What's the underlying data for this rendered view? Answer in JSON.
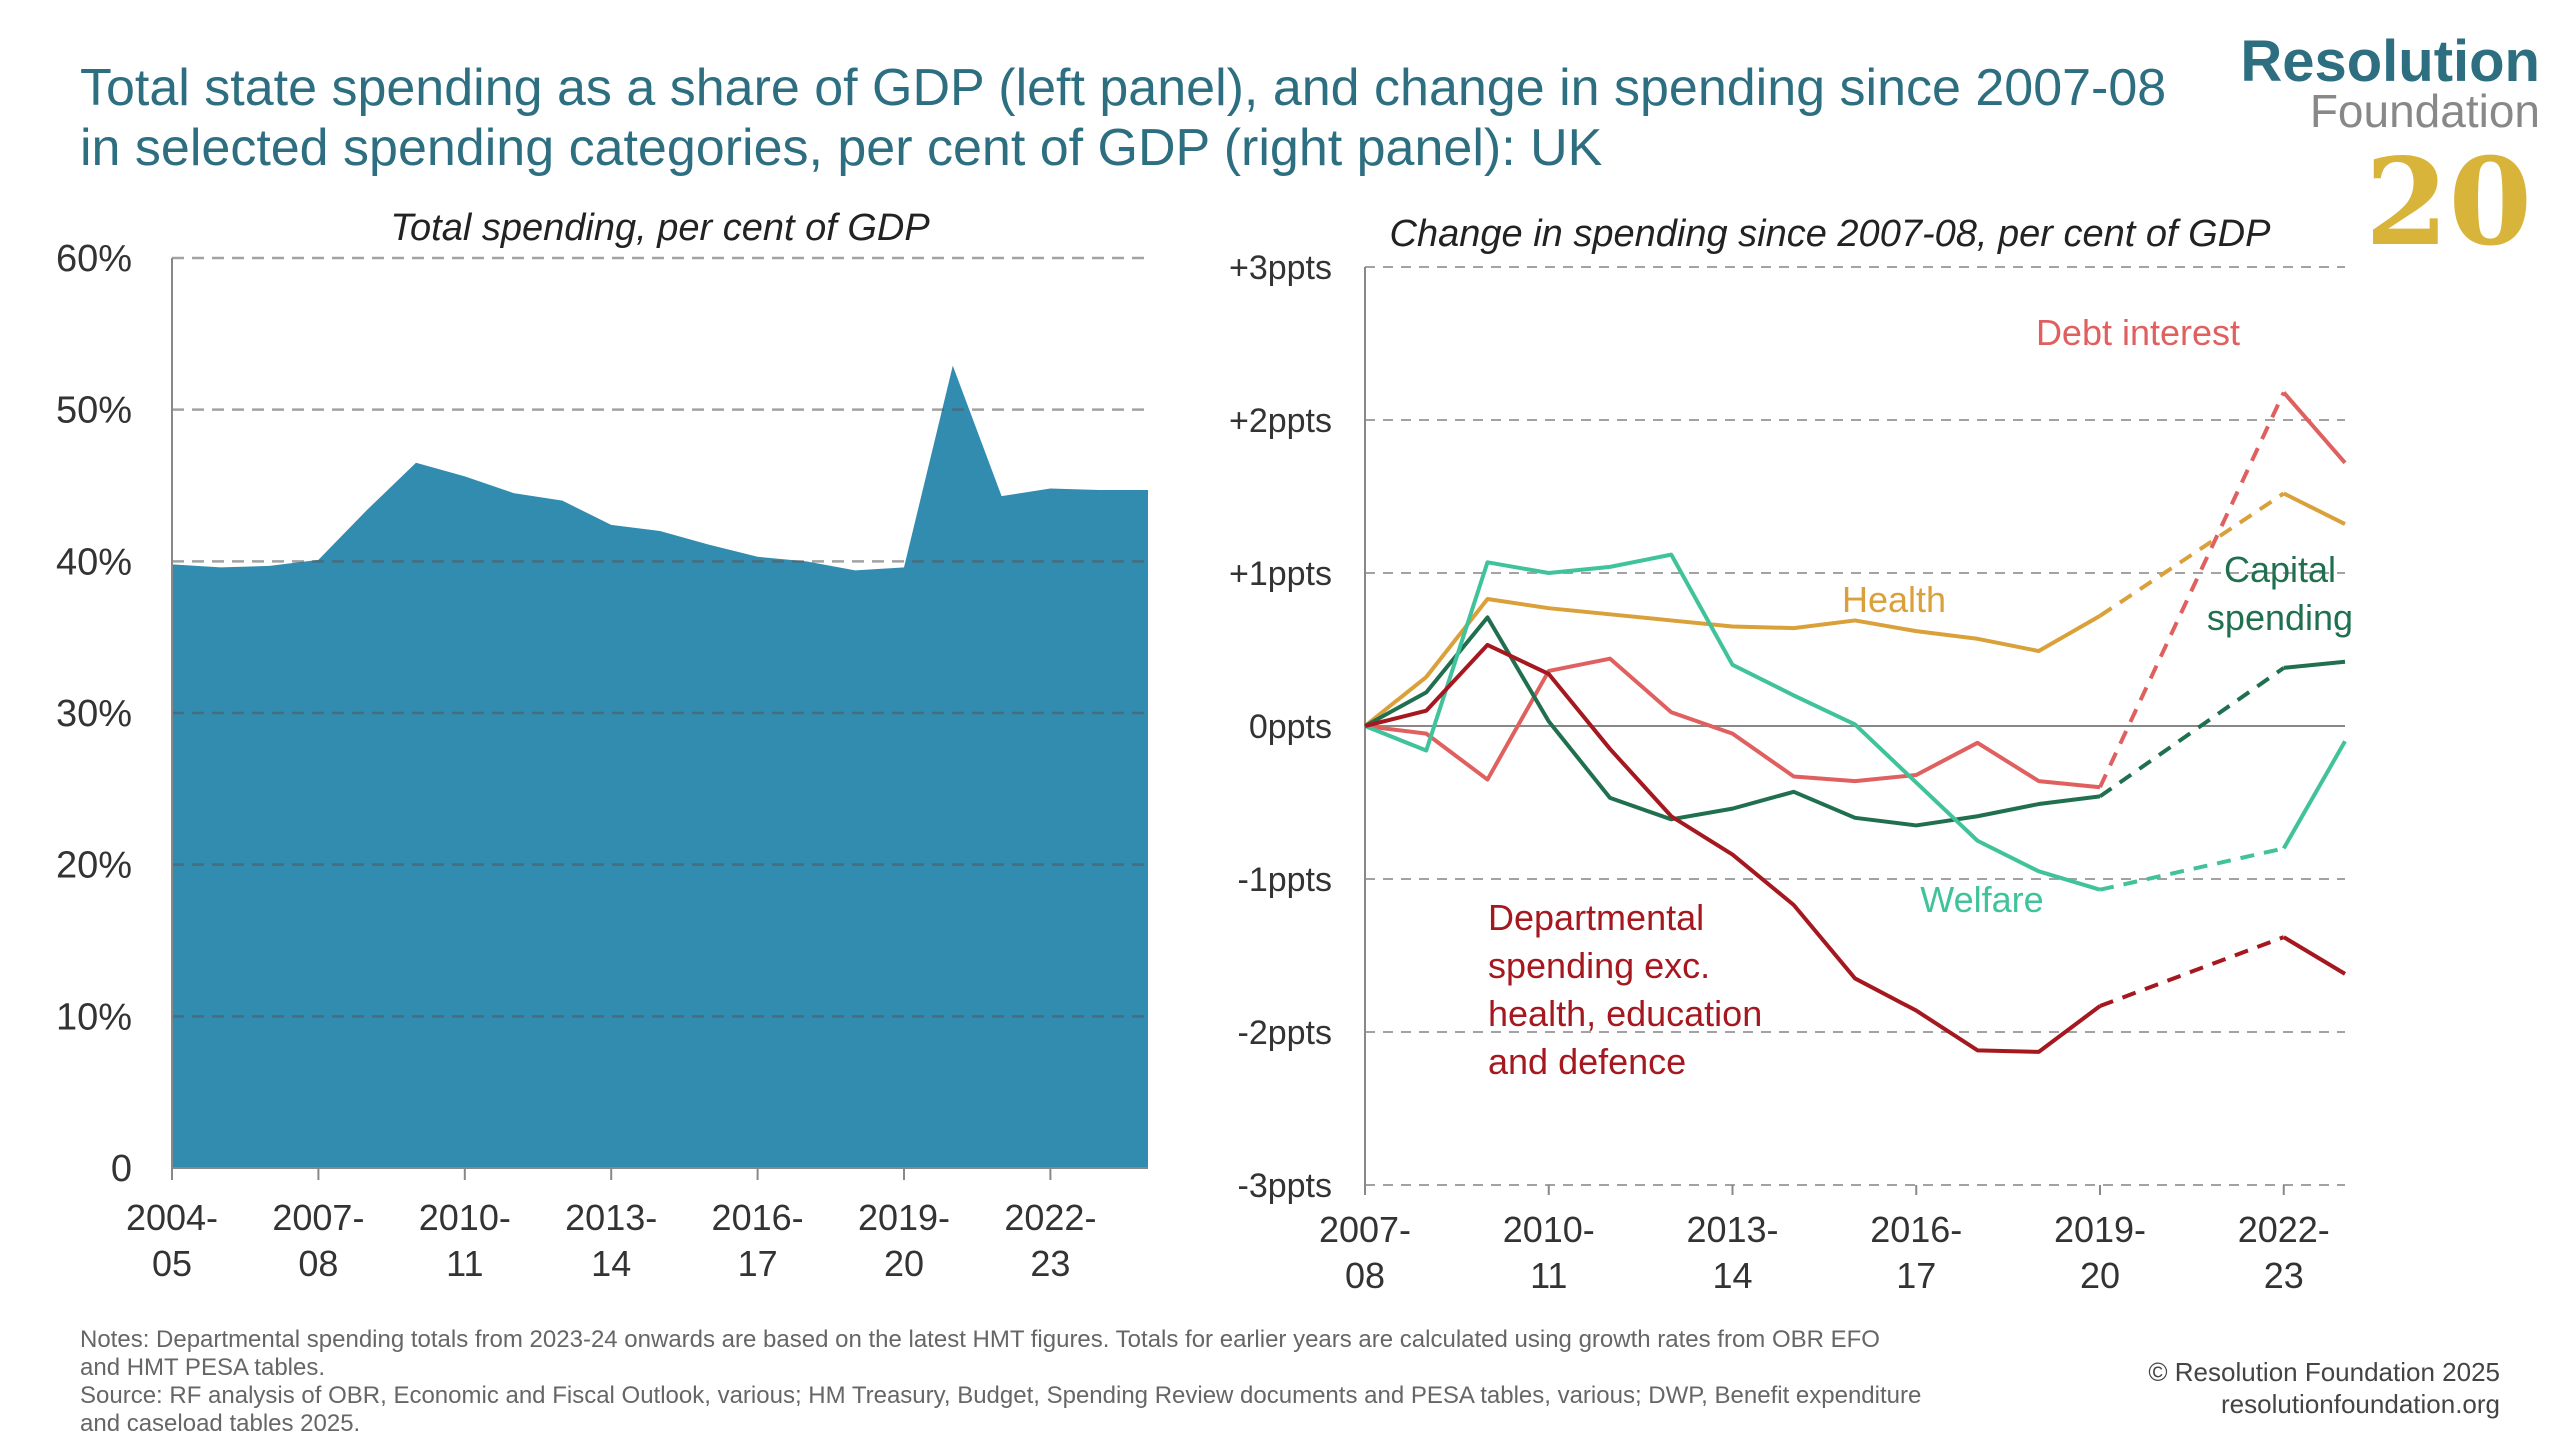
{
  "header": {
    "title_line1": "Total state spending as a share of GDP (left panel), and change in spending since 2007-08",
    "title_line2": "in selected spending categories, per cent of GDP (right panel): UK"
  },
  "logo": {
    "line1": "Resolution",
    "line2": "Foundation",
    "anniversary": "20"
  },
  "chart_data": [
    {
      "type": "area",
      "title": "Total spending, per cent of GDP",
      "xlabel": "",
      "ylabel": "",
      "ylim": [
        0,
        60
      ],
      "grid": true,
      "y_ticks": [
        0,
        10,
        20,
        30,
        40,
        50,
        60
      ],
      "y_tick_labels": [
        "0",
        "10%",
        "20%",
        "30%",
        "40%",
        "50%",
        "60%"
      ],
      "x": [
        "2004-05",
        "2005-06",
        "2006-07",
        "2007-08",
        "2008-09",
        "2009-10",
        "2010-11",
        "2011-12",
        "2012-13",
        "2013-14",
        "2014-15",
        "2015-16",
        "2016-17",
        "2017-18",
        "2018-19",
        "2019-20",
        "2020-21",
        "2021-22",
        "2022-23",
        "2023-24",
        "2024-25"
      ],
      "x_tick_labels": [
        {
          "index": 0,
          "line1": "2004-",
          "line2": "05"
        },
        {
          "index": 3,
          "line1": "2007-",
          "line2": "08"
        },
        {
          "index": 6,
          "line1": "2010-",
          "line2": "11"
        },
        {
          "index": 9,
          "line1": "2013-",
          "line2": "14"
        },
        {
          "index": 12,
          "line1": "2016-",
          "line2": "17"
        },
        {
          "index": 15,
          "line1": "2019-",
          "line2": "20"
        },
        {
          "index": 18,
          "line1": "2022-",
          "line2": "23"
        }
      ],
      "series": [
        {
          "name": "",
          "color": "#328cb0",
          "values": [
            39.8,
            39.6,
            39.7,
            40.1,
            43.4,
            46.5,
            45.6,
            44.5,
            44.0,
            42.4,
            42.0,
            41.1,
            40.3,
            40.0,
            39.4,
            39.6,
            52.9,
            44.3,
            44.8,
            44.7,
            44.7
          ]
        }
      ]
    },
    {
      "type": "line",
      "title": "Change in spending since 2007-08, per cent of GDP",
      "xlabel": "",
      "ylabel": "",
      "ylim": [
        -3,
        3
      ],
      "grid": true,
      "y_ticks": [
        -3,
        -2,
        -1,
        0,
        1,
        2,
        3
      ],
      "y_tick_labels": [
        "-3ppts",
        "-2ppts",
        "-1ppts",
        "0ppts",
        "+1ppts",
        "+2ppts",
        "+3ppts"
      ],
      "x": [
        "2007-08",
        "2008-09",
        "2009-10",
        "2010-11",
        "2011-12",
        "2012-13",
        "2013-14",
        "2014-15",
        "2015-16",
        "2016-17",
        "2017-18",
        "2018-19",
        "2019-20",
        "2020-21",
        "2021-22",
        "2022-23",
        "2023-24"
      ],
      "x_tick_labels": [
        {
          "index": 0,
          "line1": "2007-",
          "line2": "08"
        },
        {
          "index": 3,
          "line1": "2010-",
          "line2": "11"
        },
        {
          "index": 6,
          "line1": "2013-",
          "line2": "14"
        },
        {
          "index": 9,
          "line1": "2016-",
          "line2": "17"
        },
        {
          "index": 12,
          "line1": "2019-",
          "line2": "20"
        },
        {
          "index": 15,
          "line1": "2022-",
          "line2": "23"
        }
      ],
      "solid_until_index": 12,
      "dashed_segment_to_index": 15,
      "series": [
        {
          "name": "Debt interest",
          "label_lines": [
            "Debt interest"
          ],
          "color": "#e06060",
          "values": [
            0,
            -0.05,
            -0.35,
            0.36,
            0.44,
            0.09,
            -0.05,
            -0.33,
            -0.36,
            -0.32,
            -0.11,
            -0.36,
            -0.4,
            null,
            null,
            2.18,
            1.72
          ]
        },
        {
          "name": "Health",
          "label_lines": [
            "Health"
          ],
          "color": "#daa03a",
          "values": [
            0,
            0.32,
            0.83,
            0.77,
            0.73,
            0.69,
            0.65,
            0.64,
            0.69,
            0.62,
            0.57,
            0.49,
            0.72,
            null,
            null,
            1.52,
            1.32
          ]
        },
        {
          "name": "Capital spending",
          "label_lines": [
            "Capital",
            "spending"
          ],
          "color": "#20704f",
          "values": [
            0,
            0.22,
            0.71,
            0.03,
            -0.47,
            -0.61,
            -0.54,
            -0.43,
            -0.6,
            -0.65,
            -0.59,
            -0.51,
            -0.46,
            null,
            null,
            0.38,
            0.42
          ]
        },
        {
          "name": "Welfare",
          "label_lines": [
            "Welfare"
          ],
          "color": "#40c29a",
          "values": [
            0,
            -0.16,
            1.07,
            1.0,
            1.04,
            1.12,
            0.4,
            0.2,
            0.01,
            -0.37,
            -0.75,
            -0.95,
            -1.07,
            null,
            null,
            -0.8,
            -0.1
          ]
        },
        {
          "name": "Departmental spending exc. health, education and defence",
          "label_lines": [
            "Departmental",
            "spending exc.",
            "health, education",
            "and defence"
          ],
          "color": "#a5181f",
          "values": [
            0,
            0.1,
            0.53,
            0.34,
            -0.15,
            -0.59,
            -0.84,
            -1.17,
            -1.65,
            -1.86,
            -2.12,
            -2.13,
            -1.83,
            null,
            null,
            -1.38,
            -1.62
          ]
        }
      ]
    }
  ],
  "footer": {
    "notes_line1": "Notes: Departmental spending totals from 2023-24 onwards are based on the latest HMT figures. Totals for earlier years are calculated using growth rates from OBR EFO",
    "notes_line2": "and HMT PESA tables.",
    "source_line1": "Source: RF analysis of OBR, Economic and Fiscal Outlook, various; HM Treasury, Budget, Spending Review documents and PESA tables, various; DWP, Benefit expenditure",
    "source_line2": "and caseload tables 2025.",
    "copyright": "© Resolution Foundation 2025",
    "website": "resolutionfoundation.org"
  }
}
